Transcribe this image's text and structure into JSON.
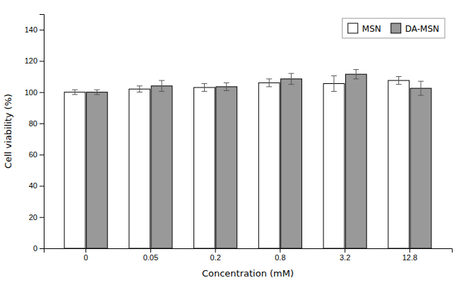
{
  "chart_data": {
    "type": "bar",
    "xlabel": "Concentration (mM)",
    "ylabel": "Cell viability (%)",
    "categories": [
      "0",
      "0.05",
      "0.2",
      "0.8",
      "3.2",
      "12.8"
    ],
    "series": [
      {
        "name": "MSN",
        "color": "#ffffff",
        "values": [
          100.0,
          102.0,
          103.0,
          106.0,
          105.5,
          107.5
        ],
        "errors": [
          1.5,
          2.0,
          2.5,
          2.5,
          5.0,
          2.5
        ]
      },
      {
        "name": "DA-MSN",
        "color": "#999999",
        "values": [
          100.0,
          104.0,
          103.5,
          108.5,
          111.5,
          102.5
        ],
        "errors": [
          1.5,
          3.5,
          2.5,
          3.5,
          3.0,
          4.5
        ]
      }
    ],
    "ylim": [
      0,
      150
    ],
    "yticks": [
      0,
      20,
      40,
      60,
      80,
      100,
      120,
      140
    ],
    "grid": false,
    "legend": "upper right"
  }
}
